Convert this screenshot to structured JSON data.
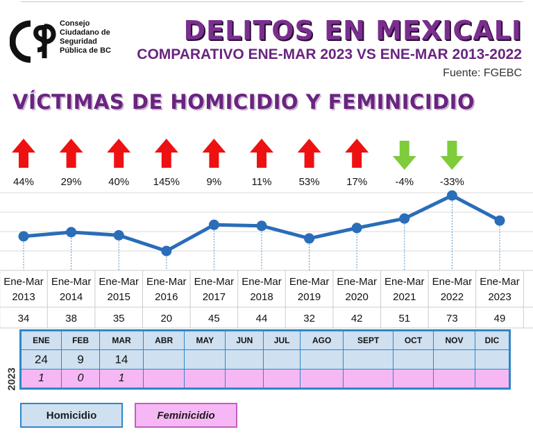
{
  "header": {
    "title": "DELITOS EN MEXICALI",
    "subtitle": "COMPARATIVO ENE-MAR 2023 VS ENE-MAR 2013-2022",
    "source": "Fuente: FGEBC"
  },
  "logo": {
    "lines": [
      "Consejo",
      "Ciudadano de",
      "Seguridad",
      "Pública de BC"
    ]
  },
  "section_title": "VÍCTIMAS DE HOMICIDIO Y FEMINICIDIO",
  "colors": {
    "line": "#2a6db8",
    "up_arrow": "#ee1111",
    "down_arrow": "#7ecb3c",
    "title": "#7a2f8f",
    "homicidio": "#cfe0f0",
    "feminicidio": "#f6b8f4"
  },
  "chart_data": {
    "type": "line",
    "title": "VÍCTIMAS DE HOMICIDIO Y FEMINICIDIO",
    "categories": [
      "Ene-Mar 2013",
      "Ene-Mar 2014",
      "Ene-Mar 2015",
      "Ene-Mar 2016",
      "Ene-Mar 2017",
      "Ene-Mar 2018",
      "Ene-Mar 2019",
      "Ene-Mar 2020",
      "Ene-Mar 2021",
      "Ene-Mar 2022",
      "Ene-Mar 2023"
    ],
    "category_lines": [
      [
        "Ene-Mar",
        "2013"
      ],
      [
        "Ene-Mar",
        "2014"
      ],
      [
        "Ene-Mar",
        "2015"
      ],
      [
        "Ene-Mar",
        "2016"
      ],
      [
        "Ene-Mar",
        "2017"
      ],
      [
        "Ene-Mar",
        "2018"
      ],
      [
        "Ene-Mar",
        "2019"
      ],
      [
        "Ene-Mar",
        "2020"
      ],
      [
        "Ene-Mar",
        "2021"
      ],
      [
        "Ene-Mar",
        "2022"
      ],
      [
        "Ene-Mar",
        "2023"
      ]
    ],
    "values": [
      34,
      38,
      35,
      20,
      45,
      44,
      32,
      42,
      51,
      73,
      49
    ],
    "changes": [
      {
        "label": "44%",
        "direction": "up"
      },
      {
        "label": "29%",
        "direction": "up"
      },
      {
        "label": "40%",
        "direction": "up"
      },
      {
        "label": "145%",
        "direction": "up"
      },
      {
        "label": "9%",
        "direction": "up"
      },
      {
        "label": "11%",
        "direction": "up"
      },
      {
        "label": "53%",
        "direction": "up"
      },
      {
        "label": "17%",
        "direction": "up"
      },
      {
        "label": "-4%",
        "direction": "down"
      },
      {
        "label": "-33%",
        "direction": "down"
      }
    ],
    "grid": true
  },
  "monthly": {
    "year": "2023",
    "months": [
      "ENE",
      "FEB",
      "MAR",
      "ABR",
      "MAY",
      "JUN",
      "JUL",
      "AGO",
      "SEPT",
      "OCT",
      "NOV",
      "DIC"
    ],
    "homicidio": [
      "24",
      "9",
      "14",
      "",
      "",
      "",
      "",
      "",
      "",
      "",
      "",
      ""
    ],
    "feminicidio": [
      "1",
      "0",
      "1",
      "",
      "",
      "",
      "",
      "",
      "",
      "",
      "",
      ""
    ]
  },
  "legend": {
    "homicidio": "Homicidio",
    "feminicidio": "Feminicidio"
  }
}
